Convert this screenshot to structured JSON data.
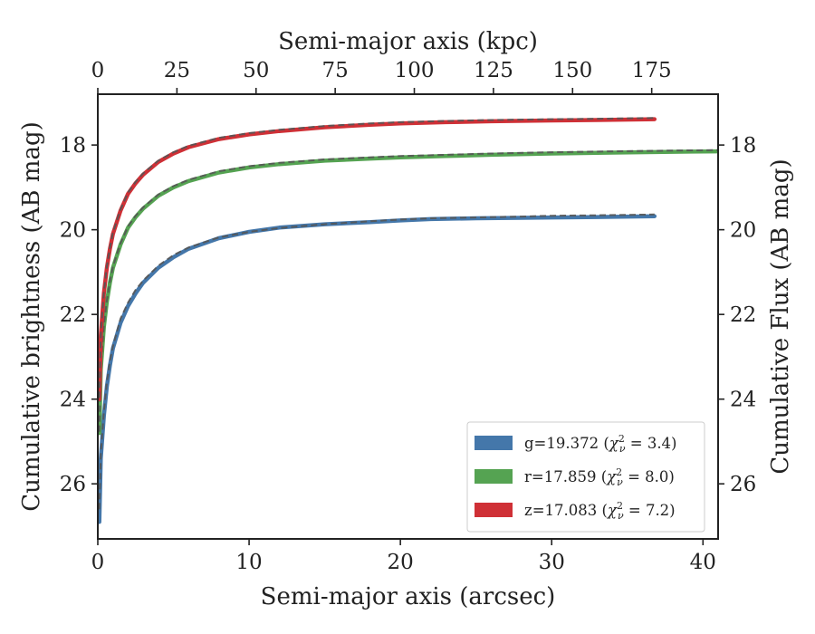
{
  "chart_data": {
    "type": "line",
    "xlabel": "Semi-major axis (arcsec)",
    "x2label": "Semi-major axis (kpc)",
    "ylabel": "Cumulative brightness (AB mag)",
    "y2label": "Cumulative Flux (AB mag)",
    "xlim": [
      0,
      41
    ],
    "ylim": [
      27.3,
      16.8
    ],
    "y_inverted": true,
    "grid": false,
    "legend_position": "lower-right",
    "x_ticks": [
      0,
      10,
      20,
      30,
      40
    ],
    "x_tick_labels": [
      "0",
      "10",
      "20",
      "30",
      "40"
    ],
    "x2_ticks": [
      0,
      25,
      50,
      75,
      100,
      125,
      150,
      175
    ],
    "x2_tick_labels": [
      "0",
      "25",
      "50",
      "75",
      "100",
      "125",
      "150",
      "175"
    ],
    "kpc_per_arcsec": 4.78,
    "y_ticks": [
      18,
      20,
      22,
      24,
      26
    ],
    "y_tick_labels": [
      "18",
      "20",
      "22",
      "24",
      "26"
    ],
    "y2_ticks": [
      18,
      20,
      22,
      24,
      26
    ],
    "y2_tick_labels": [
      "18",
      "20",
      "22",
      "24",
      "26"
    ],
    "series": [
      {
        "name": "g=19.372 (χ²ᵥ = 3.4)",
        "legend_label": "g=19.372 (",
        "chi2": "3.4",
        "color": "#4477aa",
        "x": [
          0.1,
          0.2,
          0.4,
          0.6,
          0.8,
          1.0,
          1.5,
          2.0,
          2.5,
          3.0,
          4.0,
          5.0,
          6.0,
          8.0,
          10.0,
          12.0,
          15.0,
          18.0,
          20.0,
          22.0,
          25.0,
          28.0,
          30.0,
          33.0,
          36.8
        ],
        "y": [
          26.9,
          25.4,
          24.4,
          23.7,
          23.2,
          22.8,
          22.2,
          21.8,
          21.5,
          21.25,
          20.9,
          20.65,
          20.45,
          20.2,
          20.05,
          19.95,
          19.87,
          19.82,
          19.78,
          19.75,
          19.73,
          19.72,
          19.71,
          19.7,
          19.68
        ],
        "model_y": [
          26.6,
          25.3,
          24.3,
          23.6,
          23.1,
          22.75,
          22.1,
          21.72,
          21.42,
          21.2,
          20.85,
          20.6,
          20.42,
          20.18,
          20.05,
          19.96,
          19.87,
          19.8,
          19.76,
          19.73,
          19.71,
          19.69,
          19.67,
          19.66,
          19.64
        ]
      },
      {
        "name": "r=17.859 (χ²ᵥ = 8.0)",
        "legend_label": "r=17.859 (",
        "chi2": "8.0",
        "color": "#55a352",
        "x": [
          0.1,
          0.2,
          0.4,
          0.6,
          0.8,
          1.0,
          1.5,
          2.0,
          2.5,
          3.0,
          4.0,
          5.0,
          6.0,
          8.0,
          10.0,
          12.0,
          15.0,
          18.0,
          20.0,
          23.0,
          26.0,
          30.0,
          34.0,
          38.0,
          41.0
        ],
        "y": [
          24.8,
          23.3,
          22.3,
          21.7,
          21.25,
          20.9,
          20.35,
          19.95,
          19.7,
          19.5,
          19.2,
          19.0,
          18.85,
          18.65,
          18.53,
          18.45,
          18.37,
          18.32,
          18.29,
          18.26,
          18.23,
          18.2,
          18.18,
          18.16,
          18.15
        ]
      },
      {
        "name": "z=17.083 (χ²ᵥ = 7.2)",
        "legend_label": "z=17.083 (",
        "chi2": "7.2",
        "color": "#cf3036",
        "x": [
          0.1,
          0.2,
          0.4,
          0.6,
          0.8,
          1.0,
          1.5,
          2.0,
          2.5,
          3.0,
          4.0,
          5.0,
          6.0,
          8.0,
          10.0,
          12.0,
          15.0,
          18.0,
          20.0,
          23.0,
          26.0,
          30.0,
          33.0,
          36.8
        ],
        "y": [
          24.0,
          22.5,
          21.5,
          20.9,
          20.45,
          20.1,
          19.55,
          19.15,
          18.9,
          18.7,
          18.4,
          18.2,
          18.05,
          17.86,
          17.75,
          17.67,
          17.58,
          17.52,
          17.49,
          17.46,
          17.44,
          17.42,
          17.41,
          17.39
        ]
      }
    ]
  }
}
